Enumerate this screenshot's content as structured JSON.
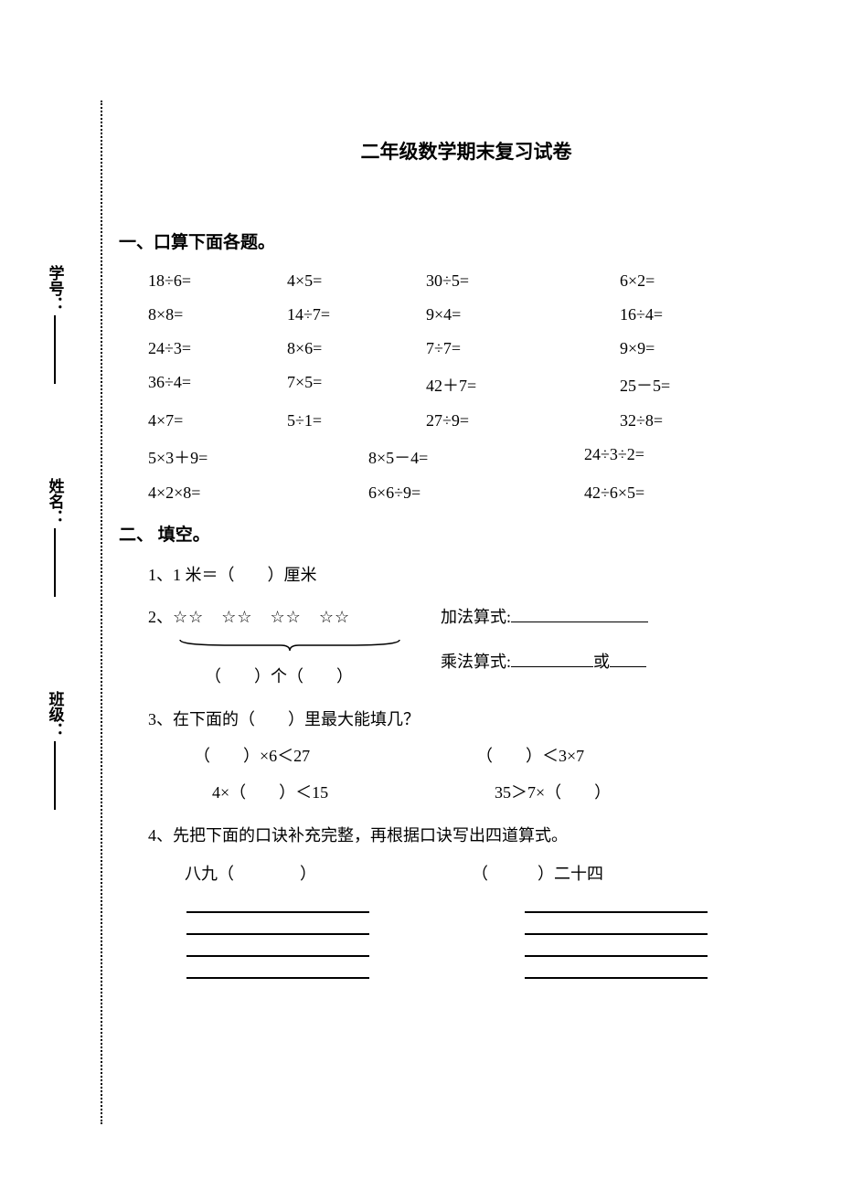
{
  "title": "二年级数学期末复习试卷",
  "sidebar": {
    "class_label": "班级：",
    "name_label": "姓名：",
    "id_label": "学号："
  },
  "section1": {
    "header": "一、口算下面各题。",
    "rows4": [
      [
        "18÷6=",
        "4×5=",
        "30÷5=",
        "6×2="
      ],
      [
        "8×8=",
        "14÷7=",
        "9×4=",
        "16÷4="
      ],
      [
        "24÷3=",
        "8×6=",
        "7÷7=",
        "9×9="
      ],
      [
        "36÷4=",
        "7×5=",
        "42＋7=",
        "25－5="
      ],
      [
        "4×7=",
        "5÷1=",
        "27÷9=",
        "32÷8="
      ]
    ],
    "rows3": [
      [
        "5×3＋9=",
        "8×5－4=",
        "24÷3÷2="
      ],
      [
        "4×2×8=",
        "6×6÷9=",
        "42÷6×5="
      ]
    ]
  },
  "section2": {
    "header": "二、 填空。",
    "q1": "1、1 米＝（　　）厘米",
    "q2": {
      "label": "2、",
      "stars": "☆☆　☆☆　☆☆　☆☆",
      "brace_fill": "（　　）个（　　）",
      "add_label": "加法算式:",
      "mul_label": "乘法算式:",
      "or_label": "或"
    },
    "q3": {
      "label": "3、在下面的（　　）里最大能填几？",
      "r1c1": "（　　）×6＜27",
      "r1c2": "（　　）＜3×7",
      "r2c1": "4×（　　）＜15",
      "r2c2": "35＞7×（　　）"
    },
    "q4": {
      "label": "4、先把下面的口诀补充完整，再根据口诀写出四道算式。",
      "left": "八九（　　　　）",
      "right": "（　　　）二十四"
    }
  }
}
